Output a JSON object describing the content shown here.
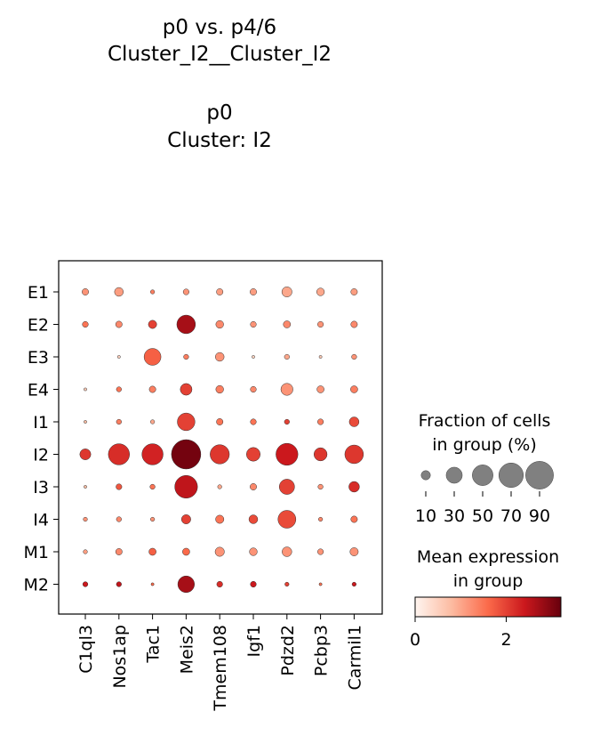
{
  "chart_data": {
    "type": "dotplot",
    "title": [
      "p0 vs. p4/6",
      "Cluster_I2__Cluster_I2",
      "",
      "p0",
      "Cluster: I2"
    ],
    "genes": [
      "C1ql3",
      "Nos1ap",
      "Tac1",
      "Meis2",
      "Tmem108",
      "Igf1",
      "Pdzd2",
      "Pcbp3",
      "Carmil1"
    ],
    "groups": [
      "E1",
      "E2",
      "E3",
      "E4",
      "I1",
      "I2",
      "I3",
      "I4",
      "M1",
      "M2"
    ],
    "fraction_pct": [
      [
        5,
        9,
        2,
        4,
        5,
        5,
        12,
        7,
        5
      ],
      [
        4,
        5,
        8,
        40,
        7,
        4,
        6,
        4,
        5
      ],
      [
        0,
        1,
        33,
        3,
        9,
        1,
        3,
        1,
        3
      ],
      [
        1,
        3,
        5,
        16,
        7,
        4,
        17,
        6,
        6
      ],
      [
        1,
        3,
        2,
        36,
        5,
        4,
        3,
        4,
        11
      ],
      [
        14,
        52,
        52,
        100,
        43,
        22,
        56,
        20,
        40
      ],
      [
        1,
        4,
        3,
        60,
        2,
        5,
        27,
        3,
        13
      ],
      [
        2,
        3,
        2,
        10,
        8,
        9,
        37,
        2,
        5
      ],
      [
        2,
        5,
        6,
        6,
        10,
        7,
        11,
        4,
        8
      ],
      [
        3,
        3,
        1,
        32,
        4,
        4,
        2,
        1,
        2
      ]
    ],
    "mean_expression": [
      [
        1.2,
        1.1,
        1.4,
        1.2,
        1.1,
        1.1,
        1.0,
        1.0,
        1.1
      ],
      [
        1.5,
        1.3,
        2.0,
        2.7,
        1.3,
        1.2,
        1.3,
        1.2,
        1.3
      ],
      [
        0.6,
        0.5,
        1.7,
        1.4,
        1.2,
        0.5,
        1.0,
        0.6,
        1.2
      ],
      [
        0.6,
        1.5,
        1.4,
        2.0,
        1.4,
        1.3,
        1.2,
        1.2,
        1.4
      ],
      [
        0.8,
        1.4,
        1.0,
        2.0,
        1.5,
        1.5,
        2.0,
        1.4,
        1.9
      ],
      [
        2.1,
        2.2,
        2.3,
        3.1,
        2.1,
        2.0,
        2.4,
        2.1,
        2.1
      ],
      [
        0.8,
        1.8,
        1.5,
        2.5,
        1.0,
        1.3,
        2.0,
        1.2,
        2.2
      ],
      [
        1.2,
        1.3,
        1.2,
        2.0,
        1.5,
        1.9,
        1.9,
        1.3,
        1.5
      ],
      [
        1.1,
        1.3,
        1.7,
        1.6,
        1.2,
        1.2,
        1.2,
        1.2,
        1.2
      ],
      [
        2.4,
        2.5,
        1.6,
        2.7,
        2.2,
        2.4,
        2.0,
        1.5,
        2.4
      ]
    ],
    "size_legend": {
      "title": [
        "Fraction of cells",
        "in group (%)"
      ],
      "values": [
        10,
        30,
        50,
        70,
        90
      ],
      "labels": [
        "10",
        "30",
        "50",
        "70",
        "90"
      ]
    },
    "color_legend": {
      "title": [
        "Mean expression",
        "in group"
      ],
      "colormap": "Reds",
      "range": [
        0,
        3.2
      ],
      "tick_values": [
        0,
        2
      ],
      "tick_labels": [
        "0",
        "2"
      ],
      "colors": [
        "#fff5f0",
        "#fcbba1",
        "#fb6a4a",
        "#cb181d",
        "#67000d"
      ]
    },
    "grid": false
  }
}
